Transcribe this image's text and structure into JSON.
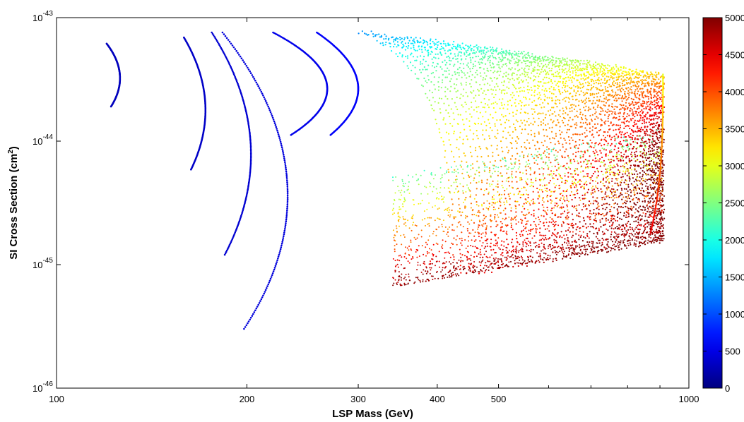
{
  "chart_data": {
    "type": "scatter",
    "xlabel": "LSP Mass (GeV)",
    "ylabel_main": "SI Cross Section (cm",
    "ylabel_sup": "2",
    "ylabel_end": ")",
    "xscale": "log",
    "yscale": "log",
    "xlim": [
      100,
      1000
    ],
    "ylim": [
      1e-46,
      1e-43
    ],
    "grid": false,
    "x_ticks": [
      {
        "value": 100,
        "label": "100"
      },
      {
        "value": 200,
        "label": "200"
      },
      {
        "value": 300,
        "label": "300"
      },
      {
        "value": 400,
        "label": "400"
      },
      {
        "value": 500,
        "label": "500"
      },
      {
        "value": 1000,
        "label": "1000"
      }
    ],
    "y_ticks": [
      {
        "exp": -46,
        "base": "10",
        "sup": "-46"
      },
      {
        "exp": -45,
        "base": "10",
        "sup": "-45"
      },
      {
        "exp": -44,
        "base": "10",
        "sup": "-44"
      },
      {
        "exp": -43,
        "base": "10",
        "sup": "-43"
      }
    ],
    "colorbar": {
      "colormap": "jet",
      "range": [
        0,
        5000
      ],
      "ticks": [
        "0",
        "500",
        "1000",
        "1500",
        "2000",
        "2500",
        "3000",
        "3500",
        "4000",
        "4500",
        "5000"
      ]
    },
    "arcs": [
      {
        "c": 120,
        "logy_top": -43.21,
        "logy_bot": -43.72,
        "xmax": 126,
        "color_value": 300
      },
      {
        "c": 159,
        "logy_top": -43.16,
        "logy_bot": -44.23,
        "xmax": 172,
        "color_value": 350
      },
      {
        "c": 176,
        "logy_top": -43.12,
        "logy_bot": -44.92,
        "xmax": 203,
        "color_value": 400
      },
      {
        "c": 183,
        "logy_top": -43.12,
        "logy_bot": -45.52,
        "xmax": 232,
        "color_value": 450
      },
      {
        "c": 220,
        "logy_top": -43.12,
        "logy_bot": -43.95,
        "xmax": 268,
        "color_value": 520
      },
      {
        "c": 258,
        "logy_top": -43.12,
        "logy_bot": -43.95,
        "xmax": 300,
        "color_value": 600
      }
    ],
    "band": {
      "x_start": 300,
      "x_end": 910,
      "upper_logy_at_start": -43.12,
      "upper_logy_at_end": -43.46,
      "lower_logy_left": -45.23,
      "lower_logy_right": -44.8,
      "color_range": [
        700,
        5000
      ]
    }
  }
}
